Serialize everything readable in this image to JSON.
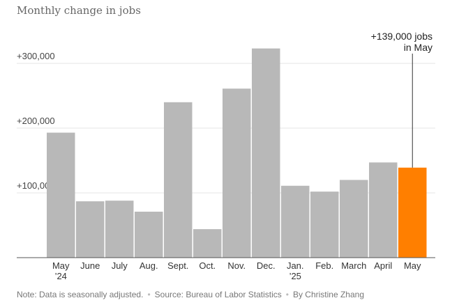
{
  "chart_data": {
    "type": "bar",
    "title": "Monthly change in jobs",
    "categories": [
      "May\n’24",
      "June",
      "July",
      "Aug.",
      "Sept.",
      "Oct.",
      "Nov.",
      "Dec.",
      "Jan.\n’25",
      "Feb.",
      "March",
      "April",
      "May"
    ],
    "values": [
      193000,
      87000,
      88000,
      71000,
      240000,
      44000,
      261000,
      323000,
      111000,
      102000,
      120000,
      147000,
      139000
    ],
    "ylim": [
      0,
      330000
    ],
    "yticks": [
      100000,
      200000,
      300000
    ],
    "ytick_labels": [
      "+100,000",
      "+200,000",
      "+300,000"
    ],
    "xlabel": "",
    "ylabel": "",
    "grid": true,
    "colors": {
      "bar": "#b8b8b8",
      "highlight": "#ff7f00",
      "grid": "#e6e6e6",
      "axis": "#555555"
    },
    "highlight_index": 12,
    "annotation": {
      "lines": [
        "+139,000 jobs",
        "in May"
      ]
    }
  },
  "footer": {
    "note": "Note: Data is seasonally adjusted.",
    "source": "Source: Bureau of Labor Statistics",
    "byline": "By Christine Zhang"
  }
}
